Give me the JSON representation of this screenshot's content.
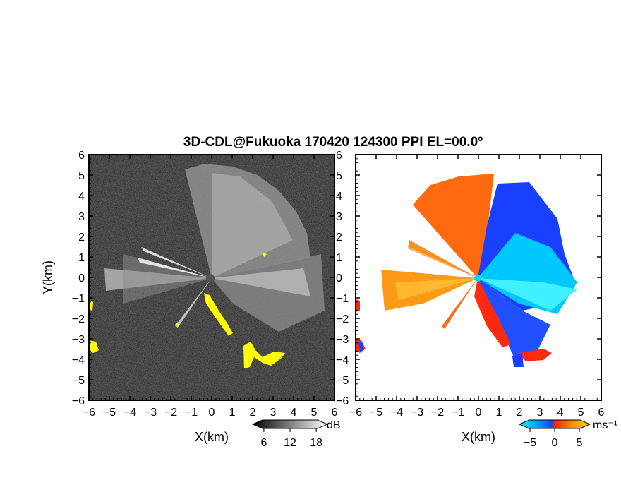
{
  "chart_data": [
    {
      "type": "heatmap",
      "title": "3D-CDL@Fukuoka 170420 124300 PPI EL=00.0º",
      "panel": "reflectivity",
      "xlabel": "X(km)",
      "ylabel": "Y(km)",
      "xlim": [
        -6,
        6
      ],
      "ylim": [
        -6,
        6
      ],
      "x_ticks": [
        "-6",
        "-5",
        "-4",
        "-3",
        "-2",
        "-1",
        "0",
        "1",
        "2",
        "3",
        "4",
        "5",
        "6"
      ],
      "y_ticks": [
        "6",
        "5",
        "4",
        "3",
        "2",
        "1",
        "0",
        "-1",
        "-2",
        "-3",
        "-4",
        "-5",
        "-6"
      ],
      "colorbar": {
        "unit": "dB",
        "ticks": [
          6,
          12,
          18
        ],
        "tick_labels": [
          "6",
          "12",
          "18"
        ],
        "colors": [
          "#000000",
          "#ffffff"
        ]
      },
      "highlight_color": "#ffff00"
    },
    {
      "type": "heatmap",
      "panel": "doppler velocity",
      "xlabel": "X(km)",
      "xlim": [
        -6,
        6
      ],
      "ylim": [
        -6,
        6
      ],
      "x_ticks": [
        "-6",
        "-5",
        "-4",
        "-3",
        "-2",
        "-1",
        "0",
        "1",
        "2",
        "3",
        "4",
        "5",
        "6"
      ],
      "y_ticks": [
        "6",
        "5",
        "4",
        "3",
        "2",
        "1",
        "0",
        "-1",
        "-2",
        "-3",
        "-4",
        "-5",
        "-6"
      ],
      "colorbar": {
        "unit": "ms⁻¹",
        "ticks": [
          -5,
          0,
          5
        ],
        "tick_labels": [
          "−5",
          "0",
          "5"
        ],
        "colors": [
          "#00ffff",
          "#0050ff",
          "#ff2000",
          "#ff9000",
          "#ffd000"
        ]
      }
    }
  ]
}
